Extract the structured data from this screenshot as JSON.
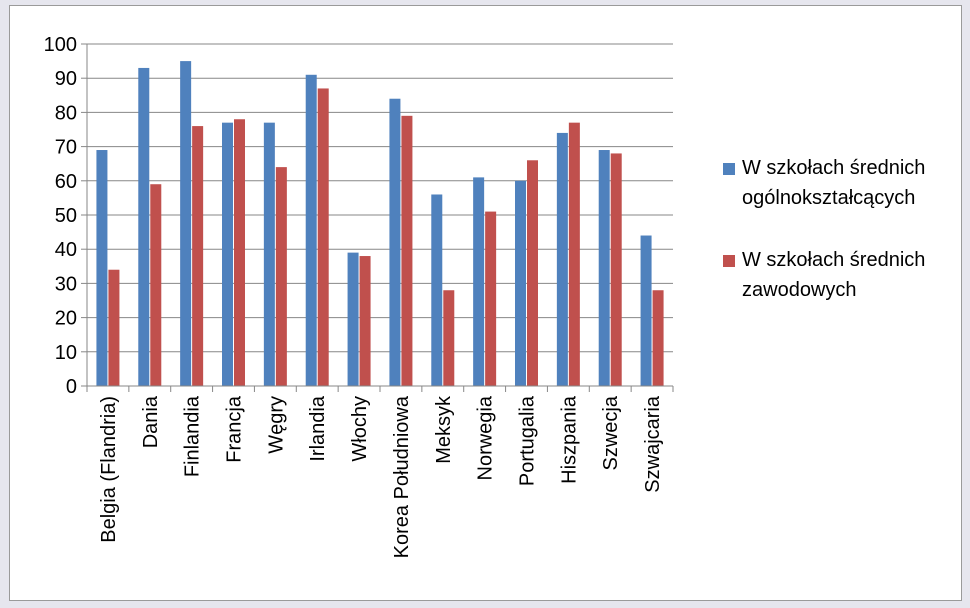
{
  "chart_data": {
    "type": "bar",
    "categories": [
      "Belgia (Flandria)",
      "Dania",
      "Finlandia",
      "Francja",
      "Węgry",
      "Irlandia",
      "Włochy",
      "Korea Południowa",
      "Meksyk",
      "Norwegia",
      "Portugalia",
      "Hiszpania",
      "Szwecja",
      "Szwajcaria"
    ],
    "series": [
      {
        "name": "W szkołach średnich ogólnokształcących",
        "color": "#4f81bd",
        "values": [
          69,
          93,
          95,
          77,
          77,
          91,
          39,
          84,
          56,
          61,
          60,
          74,
          69,
          44
        ]
      },
      {
        "name": "W szkołach średnich zawodowych",
        "color": "#c0504d",
        "values": [
          34,
          59,
          76,
          78,
          64,
          87,
          38,
          79,
          28,
          51,
          66,
          77,
          68,
          28
        ]
      }
    ],
    "ylim": [
      0,
      100
    ],
    "yticks": [
      0,
      10,
      20,
      30,
      40,
      50,
      60,
      70,
      80,
      90,
      100
    ],
    "grid": true,
    "legend": "right"
  }
}
